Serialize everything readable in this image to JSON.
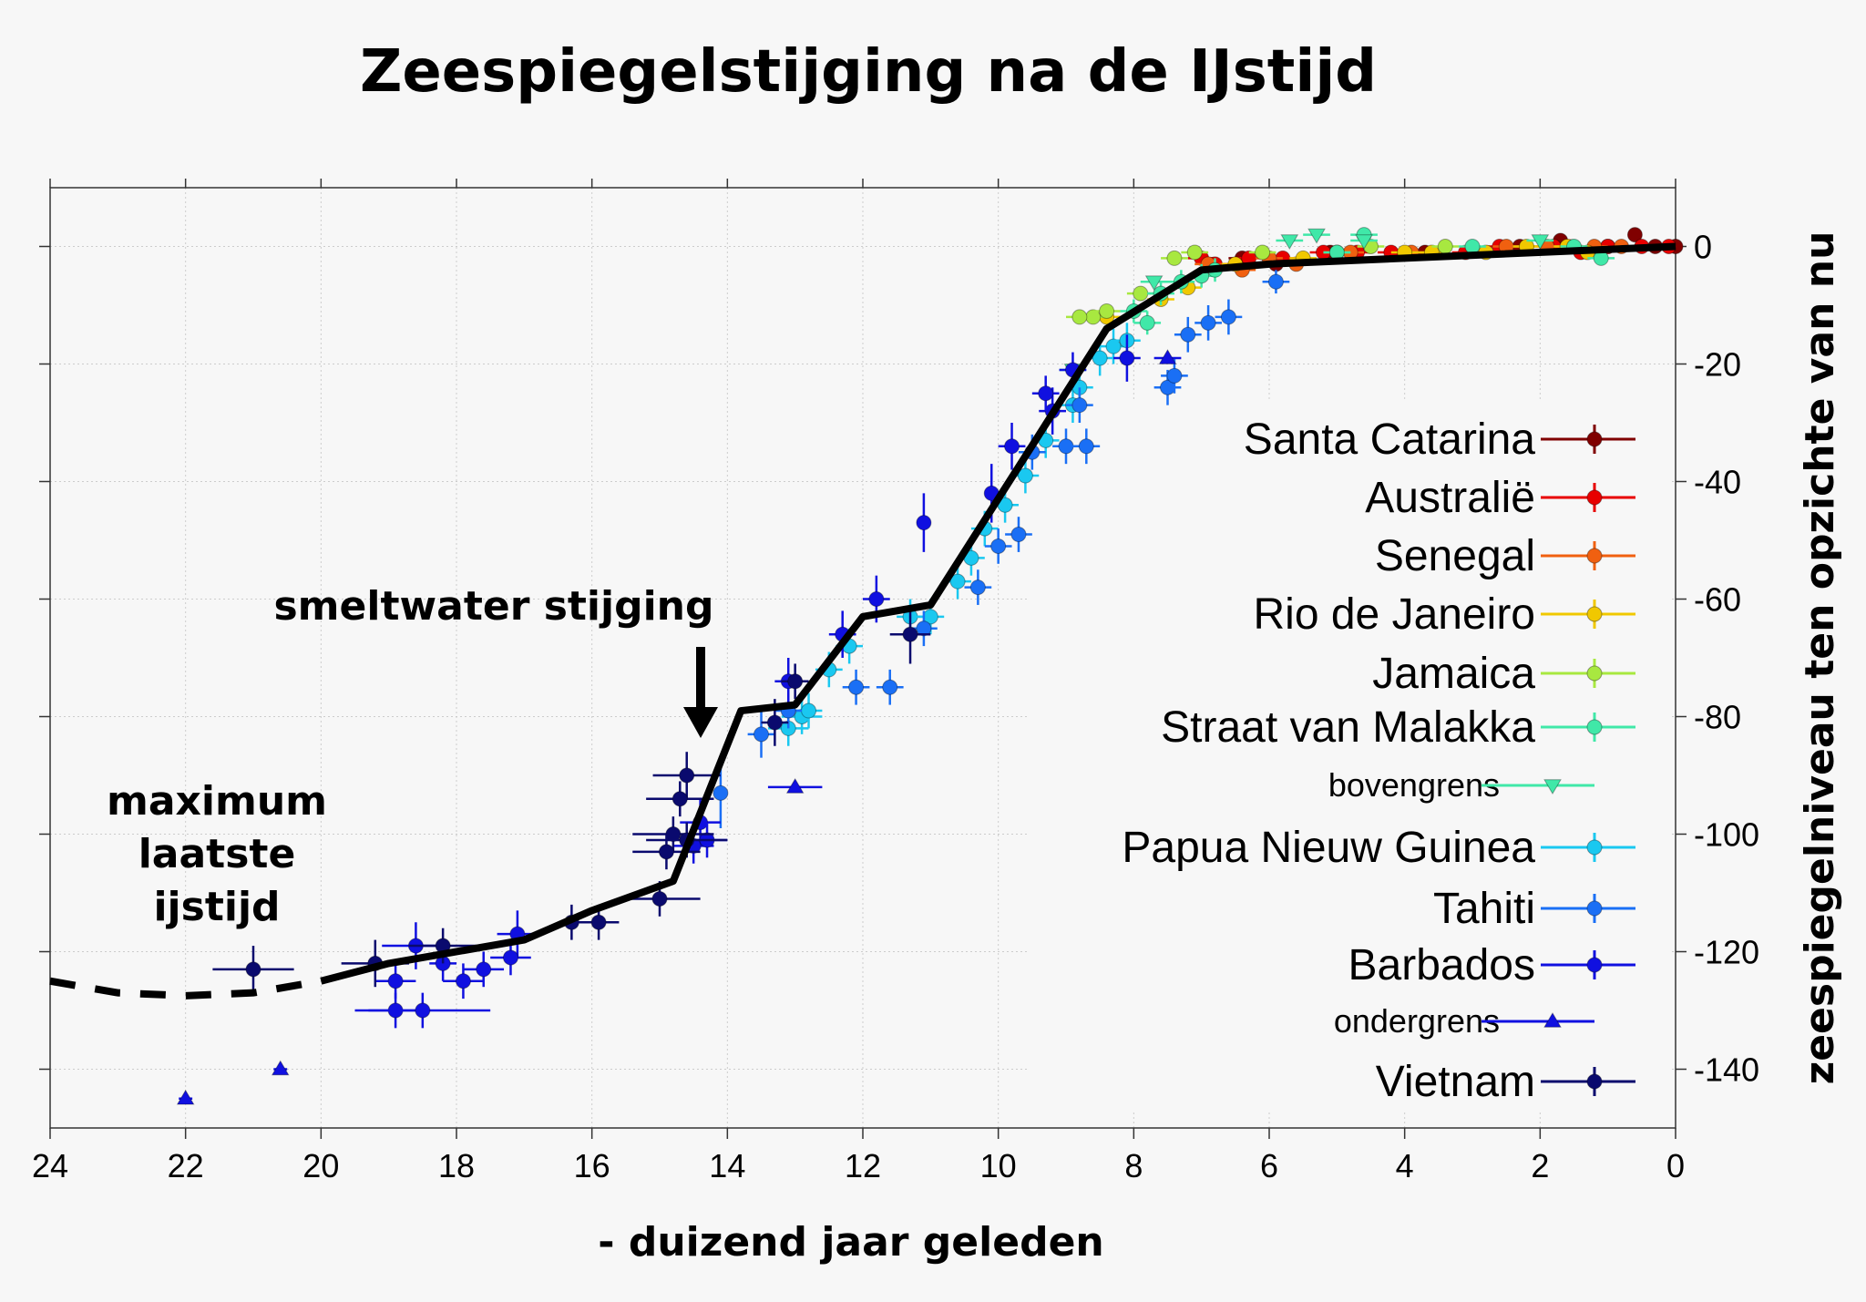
{
  "chart_data": {
    "type": "scatter",
    "title": "Zeespiegelstijging na de IJstijd",
    "xlabel": "- duizend jaar geleden",
    "ylabel": "zeespiegelniveau ten opzichte van nu",
    "xlim": [
      24,
      0
    ],
    "ylim": [
      -150,
      10
    ],
    "xticks": [
      "24",
      "22",
      "20",
      "18",
      "16",
      "14",
      "12",
      "10",
      "8",
      "6",
      "4",
      "2",
      "0"
    ],
    "xtick_values": [
      24,
      22,
      20,
      18,
      16,
      14,
      12,
      10,
      8,
      6,
      4,
      2,
      0
    ],
    "yticks": [
      "0",
      "-20",
      "-40",
      "-60",
      "-80",
      "-100",
      "-120",
      "-140"
    ],
    "ytick_values": [
      0,
      -20,
      -40,
      -60,
      -80,
      -100,
      -120,
      -140
    ],
    "grid": true,
    "legend_position": "right",
    "annotations": {
      "meltwater": "smeltwater stijging",
      "lgm": [
        "maximum",
        "laatste",
        "ijstijd"
      ]
    },
    "mean_curve_dashed": [
      [
        24,
        -125
      ],
      [
        23,
        -127
      ],
      [
        22,
        -127.5
      ],
      [
        21,
        -127
      ],
      [
        20,
        -125
      ]
    ],
    "mean_curve": [
      [
        20,
        -125
      ],
      [
        19,
        -122
      ],
      [
        17,
        -118
      ],
      [
        16,
        -113
      ],
      [
        14.8,
        -108
      ],
      [
        13.8,
        -79
      ],
      [
        13,
        -78
      ],
      [
        12,
        -63
      ],
      [
        11,
        -61
      ],
      [
        8.4,
        -14
      ],
      [
        7,
        -4
      ],
      [
        6,
        -3
      ],
      [
        0,
        0
      ]
    ],
    "series": [
      {
        "name": "Santa Catarina",
        "color": "#800000",
        "marker": "circle",
        "points": [
          [
            6.4,
            -2,
            0.2,
            1
          ],
          [
            5.9,
            -3,
            0.2,
            1
          ],
          [
            5.1,
            -1,
            0.2,
            1
          ],
          [
            3.7,
            -1,
            0.2,
            1
          ],
          [
            2.3,
            0,
            0.2,
            1
          ],
          [
            1.7,
            1,
            0.2,
            1
          ],
          [
            1,
            0,
            0.2,
            1
          ],
          [
            0.6,
            2,
            0.1,
            1
          ],
          [
            0.3,
            0,
            0.1,
            1
          ],
          [
            0,
            0,
            0.1,
            1
          ]
        ]
      },
      {
        "name": "Australië",
        "color": "#e80000",
        "marker": "circle",
        "points": [
          [
            7,
            -2,
            0.2,
            1
          ],
          [
            6.8,
            -3,
            0.2,
            1
          ],
          [
            6.3,
            -2,
            0.2,
            1
          ],
          [
            5.8,
            -2,
            0.2,
            1
          ],
          [
            5.2,
            -1,
            0.2,
            1
          ],
          [
            4.7,
            -1,
            0.2,
            1
          ],
          [
            4.2,
            -1,
            0.2,
            1
          ],
          [
            3.1,
            -1,
            0.2,
            1
          ],
          [
            2.6,
            0,
            0.2,
            1
          ],
          [
            1.8,
            0,
            0.2,
            1
          ],
          [
            1.4,
            -1,
            0.2,
            1
          ],
          [
            1,
            0,
            0.1,
            1
          ],
          [
            0.5,
            0,
            0.1,
            1
          ],
          [
            0.1,
            0,
            0.1,
            1
          ]
        ]
      },
      {
        "name": "Senegal",
        "color": "#f06010",
        "marker": "circle",
        "points": [
          [
            6.9,
            -3,
            0.2,
            1
          ],
          [
            6.4,
            -4,
            0.2,
            1
          ],
          [
            6,
            -2,
            0.2,
            1
          ],
          [
            5.6,
            -3,
            0.2,
            1
          ],
          [
            4.8,
            -1,
            0.2,
            1
          ],
          [
            3.9,
            -1,
            0.2,
            1
          ],
          [
            2.5,
            0,
            0.2,
            1
          ],
          [
            1.9,
            0,
            0.2,
            1
          ],
          [
            1.2,
            0,
            0.2,
            1
          ],
          [
            0.8,
            0,
            0.1,
            1
          ]
        ]
      },
      {
        "name": "Rio de Janeiro",
        "color": "#f0c800",
        "marker": "circle",
        "points": [
          [
            8.4,
            -12,
            0.2,
            1
          ],
          [
            7.6,
            -9,
            0.2,
            1
          ],
          [
            7.2,
            -7,
            0.2,
            1
          ],
          [
            6.5,
            -3,
            0.2,
            1
          ],
          [
            5.5,
            -2,
            0.2,
            1
          ],
          [
            4,
            -1,
            0.2,
            1
          ],
          [
            3.6,
            -1,
            0.2,
            1
          ],
          [
            2.8,
            -1,
            0.2,
            1
          ],
          [
            2.2,
            0,
            0.2,
            1
          ],
          [
            1.6,
            0,
            0.2,
            1
          ],
          [
            1.3,
            -1,
            0.2,
            1
          ]
        ]
      },
      {
        "name": "Jamaica",
        "color": "#a8e840",
        "marker": "circle",
        "points": [
          [
            8.6,
            -12,
            0.2,
            1
          ],
          [
            8.8,
            -12,
            0.2,
            1
          ],
          [
            8.4,
            -11,
            0.2,
            1
          ],
          [
            7.9,
            -8,
            0.2,
            1
          ],
          [
            7.4,
            -2,
            0.2,
            1
          ],
          [
            7.1,
            -1,
            0.2,
            1
          ],
          [
            6.1,
            -1,
            0.2,
            1
          ],
          [
            5,
            -1,
            0.2,
            1
          ],
          [
            4.5,
            0,
            0.2,
            1
          ],
          [
            3.4,
            0,
            0.2,
            1
          ]
        ]
      },
      {
        "name": "Straat van Malakka",
        "color": "#40e8a8",
        "marker": "circle",
        "points": [
          [
            8,
            -11,
            0.2,
            2
          ],
          [
            7.8,
            -13,
            0.2,
            2
          ],
          [
            7.6,
            -8,
            0.2,
            2
          ],
          [
            7.3,
            -6,
            0.2,
            2
          ],
          [
            7,
            -5,
            0.2,
            2
          ],
          [
            6.8,
            -4,
            0.2,
            2
          ],
          [
            5,
            -1,
            0.2,
            1
          ],
          [
            4.6,
            2,
            0.2,
            1
          ],
          [
            3,
            0,
            0.2,
            1
          ],
          [
            1.1,
            -2,
            0.2,
            1
          ],
          [
            1.5,
            0,
            0.2,
            1
          ]
        ]
      },
      {
        "name": "bovengrens",
        "color": "#40e8a8",
        "marker": "triangle-down",
        "small": true,
        "points": [
          [
            8.9,
            -21,
            0.2,
            0
          ],
          [
            7.7,
            -6,
            0.2,
            0
          ],
          [
            5.7,
            1,
            0.2,
            0
          ],
          [
            5.3,
            2,
            0.2,
            0
          ],
          [
            4.6,
            1,
            0.2,
            0
          ],
          [
            2,
            1,
            0.2,
            0
          ]
        ]
      },
      {
        "name": "Papua Nieuw Guinea",
        "color": "#1ac8f0",
        "marker": "circle",
        "points": [
          [
            13.1,
            -82,
            0.3,
            3
          ],
          [
            12.9,
            -80,
            0.3,
            3
          ],
          [
            12.5,
            -72,
            0.2,
            3
          ],
          [
            12.2,
            -68,
            0.2,
            3
          ],
          [
            11.3,
            -63,
            0.2,
            3
          ],
          [
            11,
            -63,
            0.2,
            3
          ],
          [
            10.6,
            -57,
            0.2,
            3
          ],
          [
            10.4,
            -53,
            0.2,
            3
          ],
          [
            10.2,
            -48,
            0.2,
            3
          ],
          [
            9.9,
            -44,
            0.2,
            3
          ],
          [
            9.6,
            -39,
            0.2,
            3
          ],
          [
            9.3,
            -33,
            0.2,
            3
          ],
          [
            8.9,
            -27,
            0.2,
            3
          ],
          [
            8.8,
            -24,
            0.2,
            3
          ],
          [
            8.5,
            -19,
            0.2,
            3
          ],
          [
            8.3,
            -17,
            0.2,
            3
          ],
          [
            8.1,
            -16,
            0.2,
            3
          ],
          [
            12.8,
            -79,
            0.2,
            3
          ]
        ]
      },
      {
        "name": "Tahiti",
        "color": "#1a6ff5",
        "marker": "circle",
        "points": [
          [
            14.1,
            -93,
            0.1,
            6
          ],
          [
            13.5,
            -83,
            0.2,
            4
          ],
          [
            12.1,
            -75,
            0.2,
            3
          ],
          [
            11.6,
            -75,
            0.2,
            3
          ],
          [
            11.1,
            -65,
            0.2,
            3
          ],
          [
            10.3,
            -58,
            0.2,
            3
          ],
          [
            10,
            -51,
            0.2,
            3
          ],
          [
            9.7,
            -49,
            0.2,
            3
          ],
          [
            9.5,
            -35,
            0.2,
            3
          ],
          [
            9,
            -34,
            0.2,
            3
          ],
          [
            8.7,
            -34,
            0.2,
            3
          ],
          [
            8.8,
            -27,
            0.2,
            3
          ],
          [
            7.5,
            -24,
            0.2,
            3
          ],
          [
            7.2,
            -15,
            0.2,
            3
          ],
          [
            6.9,
            -13,
            0.2,
            3
          ],
          [
            6.6,
            -12,
            0.2,
            3
          ],
          [
            5.9,
            -6,
            0.2,
            2
          ],
          [
            7.4,
            -22,
            0.2,
            3
          ],
          [
            13.1,
            -79,
            0.2,
            3
          ]
        ]
      },
      {
        "name": "Barbados",
        "color": "#1010e0",
        "marker": "circle",
        "points": [
          [
            18.9,
            -130,
            0.4,
            3
          ],
          [
            18.5,
            -130,
            1,
            3
          ],
          [
            18.9,
            -125,
            0.3,
            3
          ],
          [
            18.6,
            -119,
            0.5,
            4
          ],
          [
            18.2,
            -122,
            0.2,
            3
          ],
          [
            17.9,
            -125,
            0.3,
            3
          ],
          [
            17.6,
            -123,
            0.3,
            3
          ],
          [
            17.1,
            -117,
            0.3,
            4
          ],
          [
            17.2,
            -121,
            0.3,
            3
          ],
          [
            14.4,
            -98,
            0.3,
            4
          ],
          [
            14.5,
            -102,
            0.3,
            3
          ],
          [
            14.3,
            -101,
            0.3,
            3
          ],
          [
            13.1,
            -74,
            0.2,
            4
          ],
          [
            12.3,
            -66,
            0.2,
            4
          ],
          [
            11.8,
            -60,
            0.2,
            4
          ],
          [
            11.1,
            -47,
            0.1,
            5
          ],
          [
            10.1,
            -42,
            0.1,
            5
          ],
          [
            9.8,
            -34,
            0.2,
            4
          ],
          [
            9.2,
            -28,
            0.2,
            4
          ],
          [
            8.9,
            -21,
            0.2,
            3
          ],
          [
            9.3,
            -25,
            0.2,
            3
          ],
          [
            8.1,
            -19,
            0.2,
            4
          ]
        ]
      },
      {
        "name": "ondergrens",
        "color": "#1010e0",
        "marker": "triangle-up",
        "small": true,
        "points": [
          [
            22,
            -145,
            0.1,
            0
          ],
          [
            20.6,
            -140,
            0.1,
            0
          ],
          [
            13,
            -92,
            0.4,
            0
          ],
          [
            7.5,
            -19,
            0.2,
            0
          ]
        ]
      },
      {
        "name": "Vietnam",
        "color": "#0a0a6e",
        "marker": "circle",
        "points": [
          [
            21,
            -123,
            0.6,
            4
          ],
          [
            19.2,
            -122,
            0.5,
            4
          ],
          [
            18.2,
            -119,
            0.5,
            3
          ],
          [
            16.3,
            -115,
            0.2,
            3
          ],
          [
            15.9,
            -115,
            0.3,
            3
          ],
          [
            15,
            -111,
            0.6,
            3
          ],
          [
            14.6,
            -90,
            0.5,
            4
          ],
          [
            14.7,
            -94,
            0.5,
            3
          ],
          [
            14.8,
            -100,
            0.6,
            3
          ],
          [
            14.6,
            -101,
            0.6,
            3
          ],
          [
            14.9,
            -103,
            0.5,
            3
          ],
          [
            13.3,
            -81,
            0.2,
            4
          ],
          [
            11.3,
            -66,
            0.3,
            5
          ],
          [
            13,
            -74,
            0.2,
            3
          ]
        ]
      }
    ]
  }
}
